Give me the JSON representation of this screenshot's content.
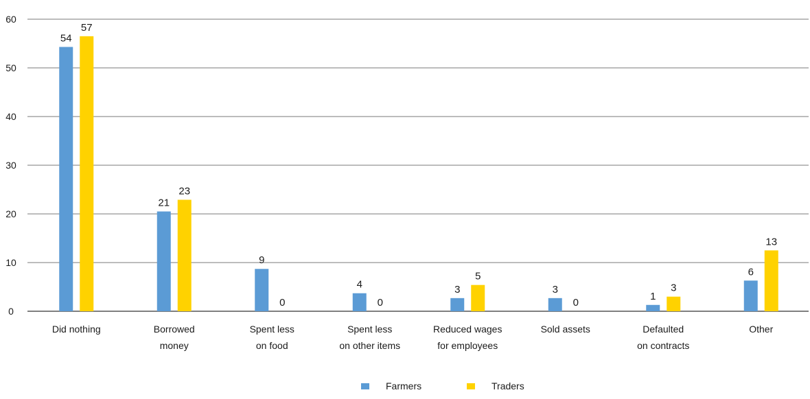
{
  "chart_data": {
    "type": "bar",
    "title": "",
    "xlabel": "",
    "ylabel": "",
    "ylim": [
      0,
      60
    ],
    "yticks": [
      0,
      10,
      20,
      30,
      40,
      50,
      60
    ],
    "grid": true,
    "legend_position": "bottom",
    "categories": [
      [
        "Did nothing"
      ],
      [
        "Borrowed",
        "money"
      ],
      [
        "Spent less",
        "on food"
      ],
      [
        "Spent less",
        "on other items"
      ],
      [
        "Reduced wages",
        "for employees"
      ],
      [
        "Sold assets"
      ],
      [
        "Defaulted",
        "on contracts"
      ],
      [
        "Other"
      ]
    ],
    "series": [
      {
        "name": "Farmers",
        "color": "#5b9bd5",
        "values": [
          54.3,
          20.5,
          8.7,
          3.7,
          2.7,
          2.7,
          1.3,
          6.3
        ],
        "labels": [
          "54",
          "21",
          "9",
          "4",
          "3",
          "3",
          "1",
          "6"
        ]
      },
      {
        "name": "Traders",
        "color": "#ffd200",
        "values": [
          56.5,
          22.9,
          0,
          0,
          5.4,
          0,
          3.0,
          12.5
        ],
        "labels": [
          "57",
          "23",
          "0",
          "0",
          "5",
          "0",
          "3",
          "13"
        ]
      }
    ]
  }
}
